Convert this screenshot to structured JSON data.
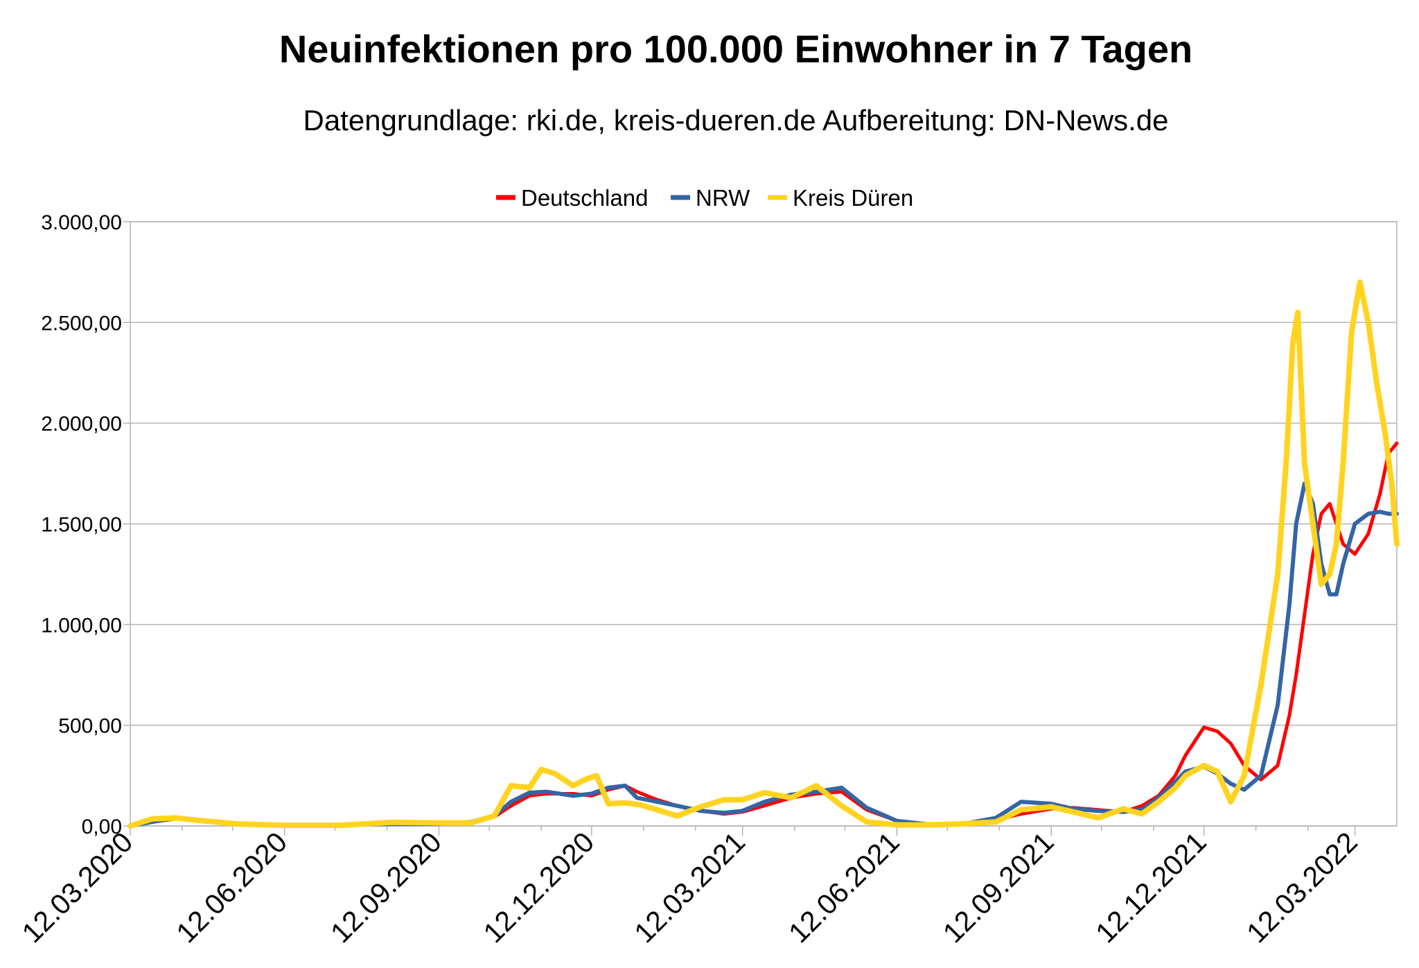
{
  "chart_data": {
    "type": "line",
    "title": "Neuinfektionen pro 100.000 Einwohner in 7 Tagen",
    "subtitle": "Datengrundlage: rki.de, kreis-dueren.de Aufbereitung: DN-News.de",
    "xlabel": "",
    "ylabel": "",
    "ylim": [
      0,
      3000
    ],
    "y_ticks": [
      0,
      500,
      1000,
      1500,
      2000,
      2500,
      3000
    ],
    "y_tick_labels": [
      "0,00",
      "500,00",
      "1.000,00",
      "1.500,00",
      "2.000,00",
      "2.500,00",
      "3.000,00"
    ],
    "x_range": [
      "2020-03-12",
      "2022-04-06"
    ],
    "x_ticks": [
      "2020-03-12",
      "2020-06-12",
      "2020-09-12",
      "2020-12-12",
      "2021-03-12",
      "2021-06-12",
      "2021-09-12",
      "2021-12-12",
      "2022-03-12"
    ],
    "x_tick_labels": [
      "12.03.2020",
      "12.06.2020",
      "12.09.2020",
      "12.12.2020",
      "12.03.2021",
      "12.06.2021",
      "12.09.2021",
      "12.12.2021",
      "12.03.2022"
    ],
    "grid": "horizontal",
    "legend": "top-center",
    "series": [
      {
        "name": "Deutschland",
        "color": "#ff0000",
        "x": [
          "2020-03-12",
          "2020-03-25",
          "2020-04-08",
          "2020-04-25",
          "2020-05-15",
          "2020-06-12",
          "2020-07-15",
          "2020-08-15",
          "2020-09-12",
          "2020-10-01",
          "2020-10-15",
          "2020-10-25",
          "2020-11-05",
          "2020-11-15",
          "2020-12-01",
          "2020-12-12",
          "2020-12-22",
          "2021-01-01",
          "2021-01-08",
          "2021-01-20",
          "2021-02-01",
          "2021-02-15",
          "2021-03-01",
          "2021-03-12",
          "2021-03-25",
          "2021-04-10",
          "2021-04-25",
          "2021-05-10",
          "2021-05-25",
          "2021-06-12",
          "2021-07-01",
          "2021-07-20",
          "2021-08-10",
          "2021-08-25",
          "2021-09-12",
          "2021-09-25",
          "2021-10-10",
          "2021-10-25",
          "2021-11-05",
          "2021-11-15",
          "2021-11-25",
          "2021-12-01",
          "2021-12-12",
          "2021-12-20",
          "2021-12-28",
          "2022-01-05",
          "2022-01-15",
          "2022-01-25",
          "2022-02-01",
          "2022-02-05",
          "2022-02-10",
          "2022-02-15",
          "2022-02-20",
          "2022-02-25",
          "2022-03-01",
          "2022-03-05",
          "2022-03-12",
          "2022-03-20",
          "2022-03-27",
          "2022-04-01",
          "2022-04-06"
        ],
        "values": [
          0,
          20,
          35,
          25,
          12,
          5,
          5,
          10,
          10,
          18,
          45,
          100,
          150,
          160,
          160,
          150,
          180,
          200,
          170,
          130,
          100,
          75,
          60,
          70,
          100,
          140,
          160,
          170,
          80,
          25,
          8,
          8,
          30,
          60,
          85,
          90,
          80,
          70,
          100,
          150,
          250,
          350,
          490,
          470,
          410,
          300,
          230,
          300,
          550,
          750,
          1050,
          1350,
          1550,
          1600,
          1500,
          1400,
          1350,
          1450,
          1650,
          1850,
          1900
        ]
      },
      {
        "name": "NRW",
        "color": "#3465a4",
        "x": [
          "2020-03-12",
          "2020-03-25",
          "2020-04-08",
          "2020-04-25",
          "2020-05-15",
          "2020-06-12",
          "2020-07-15",
          "2020-08-15",
          "2020-09-12",
          "2020-10-01",
          "2020-10-15",
          "2020-10-25",
          "2020-11-05",
          "2020-11-15",
          "2020-12-01",
          "2020-12-12",
          "2020-12-22",
          "2021-01-01",
          "2021-01-08",
          "2021-01-20",
          "2021-02-01",
          "2021-02-15",
          "2021-03-01",
          "2021-03-12",
          "2021-03-25",
          "2021-04-10",
          "2021-04-25",
          "2021-05-10",
          "2021-05-25",
          "2021-06-12",
          "2021-07-01",
          "2021-07-20",
          "2021-08-10",
          "2021-08-25",
          "2021-09-12",
          "2021-09-25",
          "2021-10-10",
          "2021-10-25",
          "2021-11-05",
          "2021-11-15",
          "2021-11-25",
          "2021-12-01",
          "2021-12-12",
          "2021-12-20",
          "2021-12-28",
          "2022-01-05",
          "2022-01-15",
          "2022-01-25",
          "2022-02-01",
          "2022-02-05",
          "2022-02-10",
          "2022-02-15",
          "2022-02-20",
          "2022-02-25",
          "2022-03-01",
          "2022-03-05",
          "2022-03-12",
          "2022-03-20",
          "2022-03-27",
          "2022-04-01",
          "2022-04-06"
        ],
        "values": [
          0,
          20,
          40,
          28,
          12,
          5,
          5,
          10,
          10,
          20,
          50,
          120,
          165,
          170,
          150,
          160,
          190,
          200,
          140,
          120,
          100,
          75,
          65,
          75,
          120,
          155,
          170,
          190,
          90,
          25,
          8,
          8,
          40,
          120,
          110,
          85,
          75,
          70,
          80,
          140,
          220,
          270,
          295,
          260,
          210,
          180,
          250,
          600,
          1100,
          1500,
          1700,
          1600,
          1300,
          1150,
          1150,
          1300,
          1500,
          1550,
          1560,
          1550,
          1550
        ]
      },
      {
        "name": "Kreis Düren",
        "color": "#ffd320",
        "x": [
          "2020-03-12",
          "2020-03-25",
          "2020-04-08",
          "2020-04-25",
          "2020-05-15",
          "2020-06-12",
          "2020-07-15",
          "2020-08-15",
          "2020-09-12",
          "2020-10-01",
          "2020-10-15",
          "2020-10-25",
          "2020-11-05",
          "2020-11-12",
          "2020-11-20",
          "2020-12-01",
          "2020-12-08",
          "2020-12-15",
          "2020-12-22",
          "2021-01-01",
          "2021-01-10",
          "2021-01-20",
          "2021-02-01",
          "2021-02-15",
          "2021-03-01",
          "2021-03-12",
          "2021-03-25",
          "2021-04-10",
          "2021-04-25",
          "2021-05-10",
          "2021-05-25",
          "2021-06-12",
          "2021-07-01",
          "2021-07-20",
          "2021-08-10",
          "2021-08-25",
          "2021-09-12",
          "2021-09-25",
          "2021-10-10",
          "2021-10-25",
          "2021-11-05",
          "2021-11-15",
          "2021-11-25",
          "2021-12-01",
          "2021-12-12",
          "2021-12-20",
          "2021-12-28",
          "2022-01-05",
          "2022-01-15",
          "2022-01-25",
          "2022-01-30",
          "2022-02-03",
          "2022-02-06",
          "2022-02-10",
          "2022-02-15",
          "2022-02-20",
          "2022-02-25",
          "2022-03-01",
          "2022-03-05",
          "2022-03-10",
          "2022-03-15",
          "2022-03-20",
          "2022-03-25",
          "2022-03-30",
          "2022-04-03",
          "2022-04-06"
        ],
        "values": [
          0,
          35,
          40,
          25,
          10,
          3,
          3,
          18,
          15,
          15,
          50,
          200,
          190,
          280,
          260,
          200,
          230,
          250,
          110,
          115,
          105,
          80,
          50,
          95,
          130,
          130,
          165,
          140,
          200,
          100,
          20,
          5,
          5,
          10,
          20,
          80,
          95,
          70,
          40,
          85,
          60,
          120,
          190,
          250,
          300,
          270,
          120,
          250,
          700,
          1250,
          1800,
          2400,
          2550,
          1800,
          1500,
          1200,
          1250,
          1400,
          1800,
          2450,
          2700,
          2500,
          2200,
          1950,
          1700,
          1400
        ]
      }
    ]
  }
}
